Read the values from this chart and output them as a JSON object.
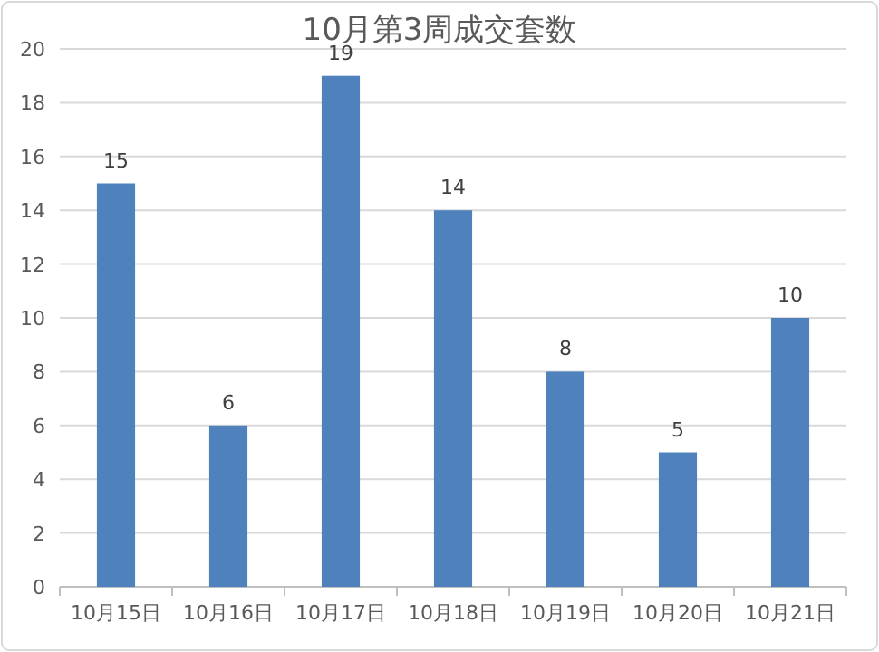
{
  "chart_data": {
    "type": "bar",
    "title": "10月第3周成交套数",
    "categories": [
      "10月15日",
      "10月16日",
      "10月17日",
      "10月18日",
      "10月19日",
      "10月20日",
      "10月21日"
    ],
    "values": [
      15,
      6,
      19,
      14,
      8,
      5,
      10
    ],
    "color": "#4f81bd",
    "ylim": [
      0,
      20
    ],
    "yticks": [
      0,
      2,
      4,
      6,
      8,
      10,
      12,
      14,
      16,
      18,
      20
    ],
    "grid": "y",
    "data_labels": true
  }
}
